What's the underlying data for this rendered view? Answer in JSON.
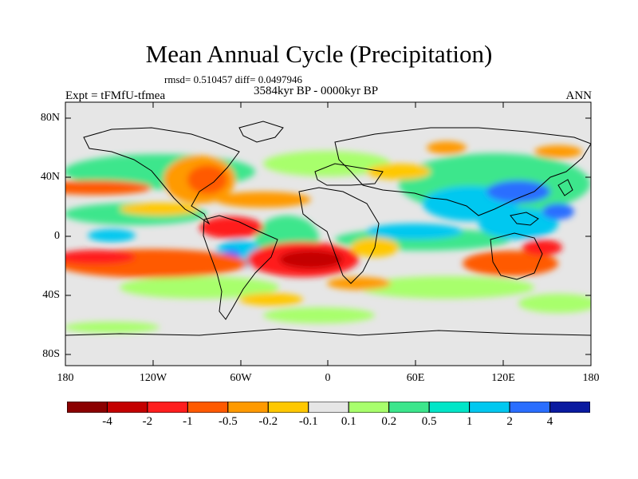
{
  "title": "Mean Annual Cycle (Precipitation)",
  "stats_line": "rmsd= 0.510457 diff= 0.0497946",
  "period": "3584kyr BP - 0000kyr BP",
  "experiment": "Expt = tFMfU-tfmea",
  "season": "ANN",
  "latitude_ticks": [
    "80N",
    "40N",
    "0",
    "40S",
    "80S"
  ],
  "longitude_ticks": [
    "180",
    "120W",
    "60W",
    "0",
    "60E",
    "120E",
    "180"
  ],
  "colorbar": {
    "labels": [
      "-4",
      "-2",
      "-1",
      "-0.5",
      "-0.2",
      "-0.1",
      "0.1",
      "0.2",
      "0.5",
      "1",
      "2",
      "4"
    ],
    "colors": [
      "#8b0000",
      "#c40000",
      "#ff1e1e",
      "#ff5a00",
      "#ff9a00",
      "#ffc800",
      "#e6e6e6",
      "#a8ff6c",
      "#3ce68c",
      "#00e6c8",
      "#00c8f0",
      "#2a6eff",
      "#0a1aa0"
    ]
  }
}
